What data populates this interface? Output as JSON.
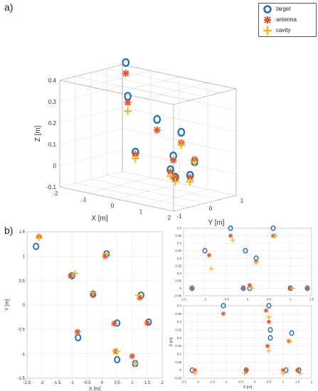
{
  "panel_labels": {
    "a": "a)",
    "b": "b)"
  },
  "legend": {
    "entries": [
      {
        "label": "target",
        "color": "#1f6fb5",
        "marker": "circle-open"
      },
      {
        "label": "antenna",
        "color": "#e0552a",
        "marker": "star"
      },
      {
        "label": "cavity",
        "color": "#f2b01e",
        "marker": "plus"
      }
    ]
  },
  "chart_data": [
    {
      "id": "a",
      "type": "scatter",
      "projection": "3d",
      "xlabel": "X [m]",
      "ylabel": "Y [m]",
      "zlabel": "Z [m]",
      "xlim": [
        -2,
        2
      ],
      "ylim": [
        -1,
        1
      ],
      "zlim": [
        -0.1,
        0.4
      ],
      "xticks": [
        "-2",
        "-1",
        "0",
        "1",
        "2"
      ],
      "yticks": [
        "-1",
        "0",
        "1",
        "2"
      ],
      "zticks": [
        "-0.1",
        "0",
        "0.1",
        "0.2",
        "0.3",
        "0.4"
      ],
      "grid": true,
      "legend_position": "top-right",
      "series": [
        {
          "name": "target",
          "points": [
            [
              -2.1,
              1.2,
              0.4
            ],
            [
              0.5,
              -1.1,
              0.4
            ],
            [
              1.2,
              -0.8,
              0.3
            ],
            [
              1.5,
              -0.3,
              0.23
            ],
            [
              -1.1,
              0.6,
              0.03
            ],
            [
              -0.1,
              0.9,
              0.03
            ],
            [
              0.9,
              -0.1,
              0.03
            ],
            [
              1.4,
              -0.4,
              0.02
            ],
            [
              1.7,
              -0.2,
              0.03
            ],
            [
              0.1,
              1.4,
              -0.01
            ]
          ]
        },
        {
          "name": "antenna",
          "points": [
            [
              -2.1,
              1.2,
              0.35
            ],
            [
              0.5,
              -1.1,
              0.37
            ],
            [
              1.2,
              -0.8,
              0.25
            ],
            [
              1.5,
              -0.3,
              0.18
            ],
            [
              -1.1,
              0.6,
              0.02
            ],
            [
              -0.1,
              0.9,
              0.01
            ],
            [
              0.9,
              -0.1,
              0.02
            ],
            [
              1.4,
              -0.4,
              0.02
            ],
            [
              1.7,
              -0.2,
              0.02
            ],
            [
              0.1,
              1.4,
              0.0
            ]
          ]
        },
        {
          "name": "cavity",
          "points": [
            [
              0.5,
              -1.1,
              0.33
            ],
            [
              1.5,
              -0.3,
              0.17
            ],
            [
              -1.1,
              0.6,
              0.0
            ],
            [
              0.9,
              -0.1,
              0.0
            ],
            [
              1.4,
              -0.4,
              0.0
            ],
            [
              1.7,
              -0.2,
              0.0
            ],
            [
              0.1,
              1.4,
              -0.01
            ]
          ]
        }
      ]
    },
    {
      "id": "b",
      "type": "scatter",
      "xlabel": "X [m]",
      "ylabel": "Y [m]",
      "xlim": [
        -2.5,
        2
      ],
      "ylim": [
        -1.5,
        1.5
      ],
      "xticks": [
        "-2.5",
        "-2",
        "-1.5",
        "-1",
        "-0.5",
        "0",
        "0.5",
        "1",
        "1.5",
        "2"
      ],
      "yticks": [
        "-1.5",
        "-1",
        "-0.5",
        "0",
        "0.5",
        "1",
        "1.5"
      ],
      "grid": true,
      "series": [
        {
          "name": "target",
          "x": [
            -2.2,
            -1.0,
            -0.8,
            -0.3,
            0.15,
            0.5,
            1.3,
            1.55,
            0.5,
            1.1
          ],
          "y": [
            1.2,
            0.6,
            -0.67,
            0.22,
            1.05,
            -0.37,
            0.2,
            -0.35,
            -1.12,
            -1.2
          ]
        },
        {
          "name": "antenna",
          "x": [
            -2.1,
            -1.05,
            -0.82,
            -0.3,
            0.1,
            0.4,
            1.25,
            1.5,
            0.45,
            1.0
          ],
          "y": [
            1.4,
            0.6,
            -0.55,
            0.22,
            1.0,
            -0.38,
            0.15,
            -0.37,
            -0.95,
            -1.05
          ]
        },
        {
          "name": "cavity",
          "x": [
            -2.1,
            -0.9,
            -0.3,
            0.15,
            1.2,
            0.5,
            1.1
          ],
          "y": [
            1.38,
            0.65,
            0.25,
            1.05,
            0.2,
            -0.95,
            -1.2
          ]
        }
      ]
    },
    {
      "id": "c",
      "type": "scatter",
      "xlabel": "",
      "ylabel": "",
      "xlim": [
        -1.5,
        1.5
      ],
      "ylim": [
        -0.05,
        0.4
      ],
      "xticks": [
        "-1.5",
        "-1",
        "-0.5",
        "0",
        "0.5",
        "1",
        "1.5"
      ],
      "yticks": [
        "-0.05",
        "0",
        "0.05",
        "0.1",
        "0.15",
        "0.2",
        "0.25",
        "0.3",
        "0.35",
        "0.4"
      ],
      "grid": true,
      "series": [
        {
          "name": "target",
          "x": [
            -1.3,
            -1.0,
            -0.4,
            -0.1,
            0.2,
            0.6,
            1.0,
            1.4,
            -0.05,
            0.05
          ],
          "y": [
            0.0,
            0.25,
            0.4,
            0.0,
            0.2,
            0.4,
            0.0,
            0.0,
            0.25,
            0.0
          ]
        },
        {
          "name": "antenna",
          "x": [
            -1.3,
            -0.9,
            -0.4,
            -0.1,
            0.2,
            0.6,
            1.0,
            1.4,
            0.05
          ],
          "y": [
            0.0,
            0.22,
            0.35,
            0.0,
            0.18,
            0.35,
            0.0,
            0.0,
            0.02
          ]
        },
        {
          "name": "cavity",
          "x": [
            -0.85,
            -0.35,
            0.2,
            0.65,
            1.05,
            0.1
          ],
          "y": [
            0.13,
            0.32,
            0.17,
            0.35,
            0.0,
            0.0
          ]
        }
      ]
    },
    {
      "id": "d",
      "type": "scatter",
      "xlabel": "X [m]",
      "ylabel": "Z [m]",
      "xlim": [
        -2.5,
        2
      ],
      "ylim": [
        -0.05,
        0.4
      ],
      "xticks": [
        "-2.5",
        "-2",
        "-1.5",
        "-1",
        "-0.5",
        "0",
        "0.5",
        "1",
        "1.5",
        "2"
      ],
      "yticks": [
        "-0.05",
        "0",
        "0.05",
        "0.1",
        "0.15",
        "0.2",
        "0.25",
        "0.3",
        "0.35",
        "0.4"
      ],
      "grid": true,
      "series": [
        {
          "name": "target",
          "x": [
            -1.1,
            0.5,
            0.55,
            1.3,
            -2.2,
            -0.3,
            0.55,
            1.1,
            1.55
          ],
          "y": [
            0.4,
            0.4,
            0.25,
            0.23,
            0.0,
            0.0,
            0.2,
            0.0,
            0.0
          ]
        },
        {
          "name": "antenna",
          "x": [
            -1.1,
            0.4,
            0.5,
            1.2,
            -2.1,
            -0.3,
            0.45,
            1.0,
            1.5
          ],
          "y": [
            0.35,
            0.37,
            0.3,
            0.18,
            0.0,
            0.0,
            0.15,
            0.0,
            0.0
          ]
        },
        {
          "name": "cavity",
          "x": [
            0.5,
            0.5,
            1.25,
            -2.1,
            -0.35,
            1.0,
            1.6
          ],
          "y": [
            0.33,
            0.12,
            0.18,
            -0.02,
            -0.02,
            -0.02,
            -0.02
          ]
        }
      ]
    }
  ]
}
